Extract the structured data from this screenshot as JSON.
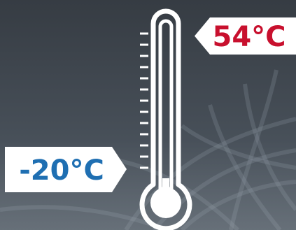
{
  "high_temp": {
    "text": "54°C",
    "color": "#c8102e"
  },
  "low_temp": {
    "text": "-20°C",
    "color": "#1f6fb2"
  },
  "thermometer": {
    "color": "#ffffff",
    "tick_count": 13
  },
  "background": {
    "top": "#363c43",
    "bottom": "#56606a"
  }
}
